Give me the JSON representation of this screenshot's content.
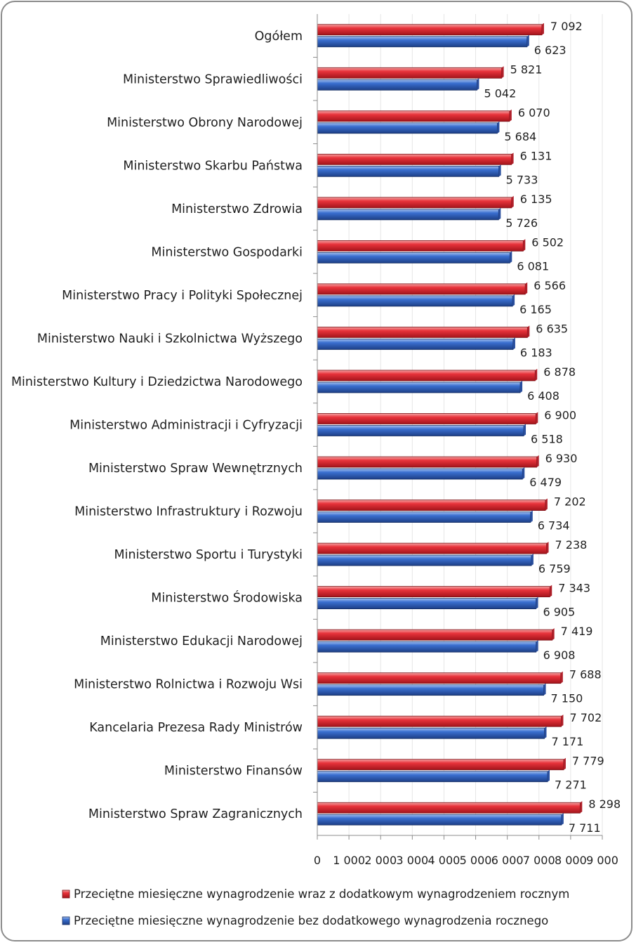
{
  "chart_data": {
    "type": "bar",
    "orientation": "horizontal",
    "categories": [
      "Ogółem",
      "Ministerstwo Sprawiedliwości",
      "Ministerstwo Obrony Narodowej",
      "Ministerstwo Skarbu Państwa",
      "Ministerstwo Zdrowia",
      "Ministerstwo Gospodarki",
      "Ministerstwo Pracy i Polityki Społecznej",
      "Ministerstwo Nauki i Szkolnictwa Wyższego",
      "Ministerstwo Kultury i Dziedzictwa Narodowego",
      "Ministerstwo Administracji i Cyfryzacji",
      "Ministerstwo Spraw Wewnętrznych",
      "Ministerstwo Infrastruktury i Rozwoju",
      "Ministerstwo Sportu i Turystyki",
      "Ministerstwo Środowiska",
      "Ministerstwo Edukacji Narodowej",
      "Ministerstwo Rolnictwa i Rozwoju Wsi",
      "Kancelaria Prezesa Rady Ministrów",
      "Ministerstwo Finansów",
      "Ministerstwo Spraw Zagranicznych"
    ],
    "series": [
      {
        "name": "Przeciętne miesięczne wynagrodzenie wraz z dodatkowym wynagrodzeniem rocznym",
        "color": "#e8333b",
        "values": [
          7092,
          5821,
          6070,
          6131,
          6135,
          6502,
          6566,
          6635,
          6878,
          6900,
          6930,
          7202,
          7238,
          7343,
          7419,
          7688,
          7702,
          7779,
          8298
        ],
        "labels": [
          "7 092",
          "5 821",
          "6 070",
          "6 131",
          "6 135",
          "6 502",
          "6 566",
          "6 635",
          "6 878",
          "6 900",
          "6 930",
          "7 202",
          "7 238",
          "7 343",
          "7 419",
          "7 688",
          "7 702",
          "7 779",
          "8 298"
        ]
      },
      {
        "name": "Przeciętne miesięczne wynagrodzenie bez dodatkowego wynagrodzenia rocznego",
        "color": "#3a6fd0",
        "values": [
          6623,
          5042,
          5684,
          5733,
          5726,
          6081,
          6165,
          6183,
          6408,
          6518,
          6479,
          6734,
          6759,
          6905,
          6908,
          7150,
          7171,
          7271,
          7711
        ],
        "labels": [
          "6 623",
          "5 042",
          "5 684",
          "5 733",
          "5 726",
          "6 081",
          "6 165",
          "6 183",
          "6 408",
          "6 518",
          "6 479",
          "6 734",
          "6 759",
          "6 905",
          "6 908",
          "7 150",
          "7 171",
          "7 271",
          "7 711"
        ]
      }
    ],
    "xlim": [
      0,
      9000
    ],
    "x_ticks": [
      0,
      1000,
      2000,
      3000,
      4000,
      5000,
      6000,
      7000,
      8000,
      9000
    ],
    "x_tick_labels": [
      "0",
      "1 000",
      "2 000",
      "3 000",
      "4 000",
      "5 000",
      "6 000",
      "7 000",
      "8 000",
      "9 000"
    ],
    "grid": false,
    "legend_position": "bottom"
  }
}
